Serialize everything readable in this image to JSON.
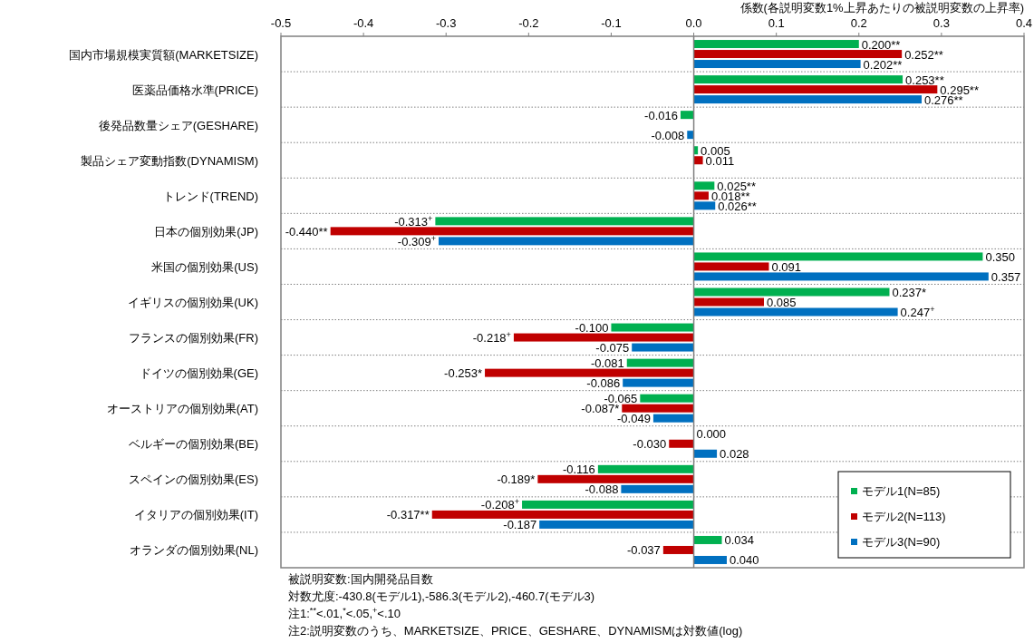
{
  "chart_data": {
    "type": "bar",
    "orientation": "horizontal",
    "xlabel": "係数(各説明変数1%上昇あたりの被説明変数の上昇率)",
    "categories": [
      "国内市場規模実質額(MARKETSIZE)",
      "医薬品価格水準(PRICE)",
      "後発品数量シェア(GESHARE)",
      "製品シェア変動指数(DYNAMISM)",
      "トレンド(TREND)",
      "日本の個別効果(JP)",
      "米国の個別効果(US)",
      "イギリスの個別効果(UK)",
      "フランスの個別効果(FR)",
      "ドイツの個別効果(GE)",
      "オーストリアの個別効果(AT)",
      "ベルギーの個別効果(BE)",
      "スペインの個別効果(ES)",
      "イタリアの個別効果(IT)",
      "オランダの個別効果(NL)"
    ],
    "series": [
      {
        "name": "モデル1(N=85)",
        "color": "#00b050",
        "values": [
          0.2,
          0.253,
          -0.016,
          0.005,
          0.025,
          -0.313,
          0.35,
          0.237,
          -0.1,
          -0.081,
          -0.065,
          0,
          -0.116,
          -0.208,
          0.034
        ],
        "value_labels": [
          "0.200**",
          "0.253**",
          "-0.016",
          "0.005",
          "0.025**",
          "-0.313$^{+}$",
          "0.350",
          "0.237*",
          "-0.100",
          "-0.081",
          "-0.065",
          "0.000",
          "-0.116",
          "-0.208$^{+}$",
          "0.034"
        ]
      },
      {
        "name": "モデル2(N=113)",
        "color": "#c00000",
        "values": [
          0.252,
          0.295,
          null,
          0.011,
          0.018,
          -0.44,
          0.091,
          0.085,
          -0.218,
          -0.253,
          -0.087,
          -0.03,
          -0.189,
          -0.317,
          -0.037
        ],
        "value_labels": [
          "0.252**",
          "0.295**",
          null,
          "0.011",
          "0.018**",
          "-0.440**",
          "0.091",
          "0.085",
          "-0.218$^{+}$",
          "-0.253*",
          "-0.087*",
          "-0.030",
          "-0.189*",
          "-0.317**",
          "-0.037"
        ]
      },
      {
        "name": "モデル3(N=90)",
        "color": "#0070c0",
        "values": [
          0.202,
          0.276,
          -0.008,
          null,
          0.026,
          -0.309,
          0.357,
          0.247,
          -0.075,
          -0.086,
          -0.049,
          0.028,
          -0.088,
          -0.187,
          0.04
        ],
        "value_labels": [
          "0.202**",
          "0.276**",
          "-0.008",
          null,
          "0.026**",
          "-0.309$^{+}$",
          "0.357",
          "0.247$^{+}$",
          "-0.075",
          "-0.086",
          "-0.049",
          "0.028",
          "-0.088",
          "-0.187",
          "0.040"
        ]
      }
    ],
    "xlim": [
      -0.5,
      0.4
    ],
    "xticks": [
      {
        "value": -0.5,
        "label": "-0.5"
      },
      {
        "value": -0.4,
        "label": "-0.4"
      },
      {
        "value": -0.3,
        "label": "-0.3"
      },
      {
        "value": -0.2,
        "label": "-0.2"
      },
      {
        "value": -0.1,
        "label": "-0.1"
      },
      {
        "value": 0,
        "label": "0.0"
      },
      {
        "value": 0.1,
        "label": "0.1"
      },
      {
        "value": 0.2,
        "label": "0.2"
      },
      {
        "value": 0.3,
        "label": "0.3"
      },
      {
        "value": 0.4,
        "label": "0.4"
      }
    ],
    "grid": "y",
    "legend": "bottom right",
    "annotations": [
      "被説明変数:国内開発品目数",
      "対数尤度:-430.8(モデル1),-586.3(モデル2),-460.7(モデル3)",
      "注1:$^{**}$<.01,$^{*}$<.05,$^{+}$<.10",
      "注2:説明変数のうち、MARKETSIZE、PRICE、GESHARE、DYNAMISMは対数値(log)"
    ]
  }
}
